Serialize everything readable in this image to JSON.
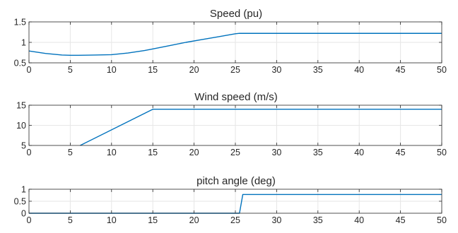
{
  "chart_data": [
    {
      "type": "line",
      "title": "Speed (pu)",
      "xlim": [
        0,
        50
      ],
      "ylim": [
        0.5,
        1.5
      ],
      "xticks": [
        0,
        5,
        10,
        15,
        20,
        25,
        30,
        35,
        40,
        45,
        50
      ],
      "yticks": [
        0.5,
        1,
        1.5
      ],
      "ytick_labels": [
        "0.5",
        "1",
        "1.5"
      ],
      "grid": true,
      "series_color": "#0072BD",
      "series": [
        {
          "x": [
            0,
            2,
            4,
            5,
            6,
            8,
            10,
            12,
            14,
            15,
            17,
            19,
            21,
            23,
            25,
            25.5,
            30,
            35,
            40,
            45,
            50
          ],
          "y": [
            0.79,
            0.73,
            0.69,
            0.685,
            0.685,
            0.69,
            0.7,
            0.74,
            0.8,
            0.84,
            0.92,
            1.0,
            1.07,
            1.14,
            1.21,
            1.22,
            1.22,
            1.22,
            1.22,
            1.22,
            1.22
          ]
        }
      ]
    },
    {
      "type": "line",
      "title": "Wind speed (m/s)",
      "xlim": [
        0,
        50
      ],
      "ylim": [
        5,
        15
      ],
      "xticks": [
        0,
        5,
        10,
        15,
        20,
        25,
        30,
        35,
        40,
        45,
        50
      ],
      "yticks": [
        5,
        10,
        15
      ],
      "ytick_labels": [
        "5",
        "10",
        "15"
      ],
      "grid": true,
      "series_color": "#0072BD",
      "series": [
        {
          "x": [
            6.2,
            15,
            25,
            30,
            35,
            40,
            45,
            50
          ],
          "y": [
            5,
            14,
            14,
            14,
            14,
            14,
            14,
            14
          ]
        }
      ]
    },
    {
      "type": "line",
      "title": "pitch angle (deg)",
      "xlim": [
        0,
        50
      ],
      "ylim": [
        0,
        1
      ],
      "xticks": [
        0,
        5,
        10,
        15,
        20,
        25,
        30,
        35,
        40,
        45,
        50
      ],
      "yticks": [
        0,
        0.5,
        1
      ],
      "ytick_labels": [
        "0",
        "0.5",
        "1"
      ],
      "grid": true,
      "series_color": "#0072BD",
      "series": [
        {
          "x": [
            0,
            5,
            10,
            15,
            20,
            25.5,
            25.9,
            30,
            35,
            40,
            45,
            50
          ],
          "y": [
            0,
            0,
            0,
            0,
            0,
            0,
            0.78,
            0.78,
            0.78,
            0.78,
            0.78,
            0.78
          ]
        }
      ]
    }
  ]
}
